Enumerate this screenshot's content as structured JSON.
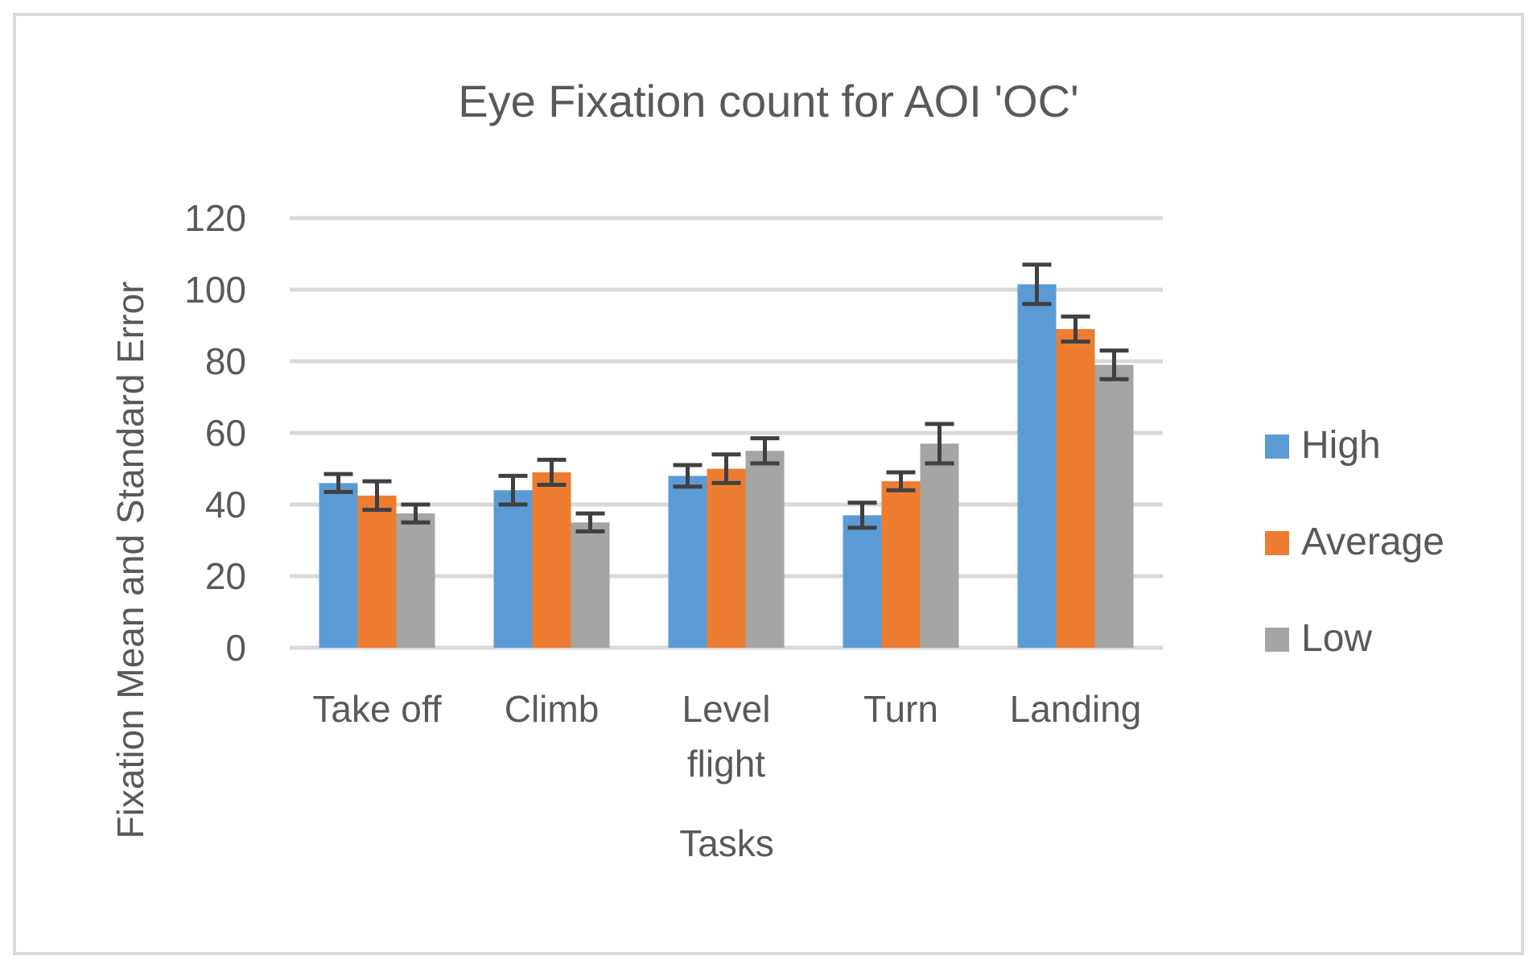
{
  "chart_data": {
    "type": "bar",
    "title": "Eye Fixation count for AOI 'OC'",
    "xlabel": "Tasks",
    "ylabel": "Fixation Mean and Standard Error",
    "ylim": [
      0,
      120
    ],
    "yticks": [
      0,
      20,
      40,
      60,
      80,
      100,
      120
    ],
    "grid": true,
    "legend_position": "right",
    "categories": [
      [
        "Take off"
      ],
      [
        "Climb"
      ],
      [
        "Level",
        "flight"
      ],
      [
        "Turn"
      ],
      [
        "Landing"
      ]
    ],
    "series": [
      {
        "name": "High",
        "color": "#5b9bd5",
        "values": [
          46,
          44,
          48,
          37,
          101.5
        ],
        "errors": [
          2.5,
          4,
          3,
          3.5,
          5.5
        ]
      },
      {
        "name": "Average",
        "color": "#ed7d31",
        "values": [
          42.5,
          49,
          50,
          46.5,
          89
        ],
        "errors": [
          4,
          3.5,
          4,
          2.5,
          3.5
        ]
      },
      {
        "name": "Low",
        "color": "#a5a5a5",
        "values": [
          37.5,
          35,
          55,
          57,
          79
        ],
        "errors": [
          2.5,
          2.5,
          3.5,
          5.5,
          4
        ]
      }
    ]
  }
}
